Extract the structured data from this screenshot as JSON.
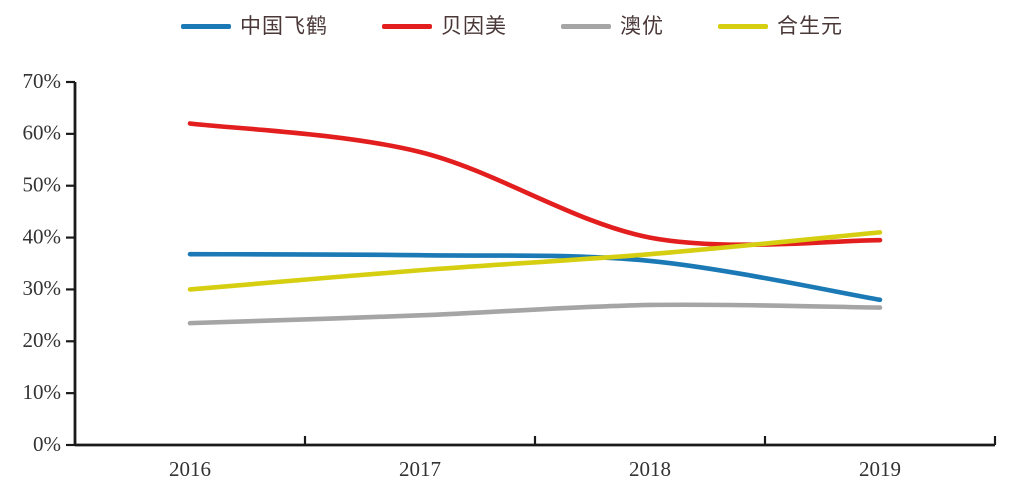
{
  "page": {
    "background": "#ffffff"
  },
  "legend": {
    "text_color": "#4a3737"
  },
  "chart_data": {
    "type": "line",
    "title": "",
    "xlabel": "",
    "ylabel": "",
    "categories": [
      "2016",
      "2017",
      "2018",
      "2019"
    ],
    "series": [
      {
        "name": "中国飞鹤",
        "color": "#1b79b5",
        "values": [
          36.8,
          36.6,
          35.5,
          28.0
        ]
      },
      {
        "name": "贝因美",
        "color": "#e31e1e",
        "values": [
          62.0,
          56.5,
          40.0,
          39.5
        ]
      },
      {
        "name": "澳优",
        "color": "#a5a5a5",
        "values": [
          23.5,
          25.0,
          27.0,
          26.5
        ]
      },
      {
        "name": "合生元",
        "color": "#d6ce10",
        "values": [
          30.0,
          33.7,
          36.8,
          41.0
        ]
      }
    ],
    "ylim": [
      0,
      70
    ],
    "y_tick_step": 10,
    "y_tick_labels": [
      "0%",
      "10%",
      "20%",
      "30%",
      "40%",
      "50%",
      "60%",
      "70%"
    ],
    "grid": false,
    "smooth": true,
    "legend_position": "top",
    "axis_color": "#1a1a1a",
    "tick_text_color": "#333333"
  }
}
